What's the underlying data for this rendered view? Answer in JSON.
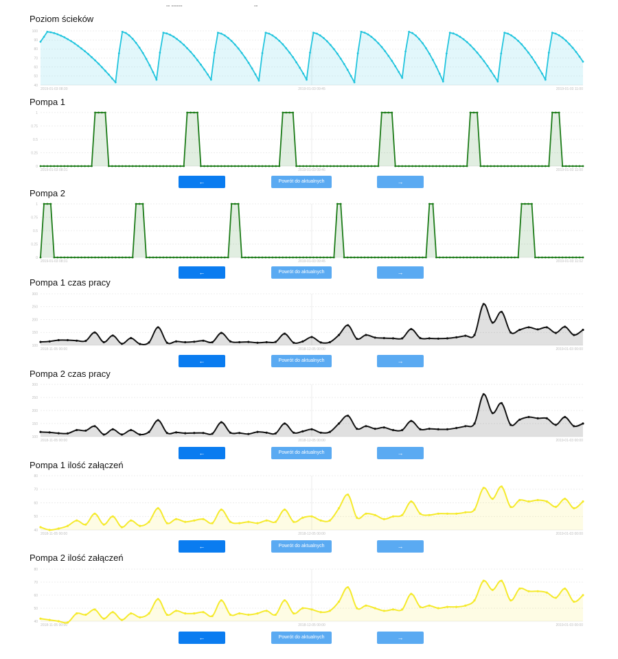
{
  "top_fragment": [
    "-- ------",
    "--"
  ],
  "nav": {
    "prev": "←",
    "current": "Powrót do aktualnych",
    "next": "→"
  },
  "colors": {
    "cyan": "#20c4dd",
    "green": "#1a7a16",
    "black": "#111111",
    "yellow": "#f5ea2c",
    "button_primary": "#0a7cf0",
    "button_secondary": "#5aaaf2"
  },
  "charts": [
    {
      "id": "poziom",
      "title": "Poziom ścieków",
      "type": "area",
      "ylim": [
        40,
        100
      ],
      "yticks": [
        "40",
        "50",
        "60",
        "70",
        "80",
        "90",
        "100"
      ],
      "xlabels": [
        "2019-01-03 08:30",
        "2019-01-03 09:45",
        "2019-01-03 11:00"
      ],
      "x_count": 160,
      "series_kind": "sawtooth",
      "teeth": [
        [
          2,
          99,
          22,
          43
        ],
        [
          24,
          99,
          34,
          46
        ],
        [
          36,
          98,
          50,
          46
        ],
        [
          52,
          98,
          64,
          45
        ],
        [
          66,
          98,
          78,
          46
        ],
        [
          80,
          98,
          92,
          43
        ],
        [
          94,
          99,
          106,
          48
        ],
        [
          108,
          99,
          118,
          44
        ],
        [
          120,
          98,
          134,
          44
        ],
        [
          136,
          98,
          148,
          46
        ],
        [
          150,
          98,
          159,
          66
        ]
      ],
      "color_key": "cyan",
      "has_buttons": false
    },
    {
      "id": "pompa1",
      "title": "Pompa 1",
      "type": "step",
      "ylim": [
        0,
        1
      ],
      "yticks": [
        "0",
        "0.25",
        "0.5",
        "0.75",
        "1"
      ],
      "xlabels": [
        "2019-01-03 08:31",
        "2019-01-03 09:46",
        "2019-01-03 11:00"
      ],
      "x_count": 160,
      "series_kind": "pulses",
      "pulses": [
        [
          16,
          19
        ],
        [
          43,
          46
        ],
        [
          71,
          74
        ],
        [
          100,
          103
        ],
        [
          126,
          128
        ],
        [
          150,
          152
        ]
      ],
      "color_key": "green",
      "has_buttons": true
    },
    {
      "id": "pompa2",
      "title": "Pompa 2",
      "type": "step",
      "ylim": [
        0,
        1
      ],
      "yticks": [
        "0",
        "0.25",
        "0.5",
        "0.75",
        "1"
      ],
      "xlabels": [
        "2019-01-03 08:31",
        "2019-01-03 09:45",
        "2019-01-03 11:02"
      ],
      "x_count": 160,
      "series_kind": "pulses",
      "pulses": [
        [
          1,
          3
        ],
        [
          28,
          30
        ],
        [
          56,
          58
        ],
        [
          87,
          88
        ],
        [
          114,
          115
        ],
        [
          141,
          144
        ]
      ],
      "color_key": "green",
      "has_buttons": true
    },
    {
      "id": "pompa1czas",
      "title": "Pompa 1 czas pracy",
      "type": "line",
      "ylim": [
        100,
        300
      ],
      "yticks": [
        "100",
        "150",
        "200",
        "250",
        "300"
      ],
      "xlabels": [
        "2018-11-05 00:00",
        "2018-12-05 00:00",
        "2019-01-03 00:00"
      ],
      "values": [
        113,
        115,
        120,
        120,
        118,
        117,
        150,
        112,
        138,
        106,
        128,
        105,
        111,
        170,
        110,
        115,
        112,
        114,
        118,
        112,
        148,
        115,
        112,
        113,
        110,
        112,
        113,
        145,
        110,
        115,
        132,
        111,
        112,
        140,
        178,
        125,
        140,
        130,
        128,
        127,
        127,
        163,
        128,
        127,
        126,
        127,
        131,
        137,
        140,
        260,
        188,
        230,
        150,
        160,
        170,
        162,
        170,
        148,
        172,
        140,
        160
      ],
      "color_key": "black",
      "has_buttons": true
    },
    {
      "id": "pompa2czas",
      "title": "Pompa 2 czas pracy",
      "type": "line",
      "ylim": [
        100,
        300
      ],
      "yticks": [
        "100",
        "150",
        "200",
        "250",
        "300"
      ],
      "xlabels": [
        "2018-11-05 00:00",
        "2018-12-05 00:00",
        "2019-01-03 00:00"
      ],
      "values": [
        118,
        116,
        113,
        112,
        125,
        123,
        140,
        108,
        128,
        108,
        125,
        108,
        118,
        163,
        114,
        116,
        113,
        114,
        114,
        111,
        155,
        115,
        114,
        110,
        118,
        115,
        112,
        150,
        115,
        120,
        128,
        115,
        118,
        150,
        180,
        130,
        140,
        130,
        135,
        125,
        125,
        160,
        128,
        130,
        128,
        128,
        133,
        140,
        150,
        262,
        190,
        228,
        145,
        165,
        175,
        170,
        170,
        145,
        175,
        140,
        150
      ],
      "color_key": "black",
      "has_buttons": true
    },
    {
      "id": "pompa1ilosc",
      "title": "Pompa 1 ilość załączeń",
      "type": "line",
      "ylim": [
        40,
        80
      ],
      "yticks": [
        "40",
        "50",
        "60",
        "70",
        "80"
      ],
      "xlabels": [
        "2018-11-05 00:00",
        "2018-12-05 00:00",
        "2019-01-03 00:00"
      ],
      "values": [
        42,
        40,
        41,
        43,
        47,
        44,
        52,
        44,
        50,
        42,
        47,
        43,
        46,
        56,
        45,
        48,
        46,
        47,
        48,
        45,
        55,
        46,
        45,
        46,
        45,
        47,
        46,
        55,
        46,
        49,
        50,
        47,
        47,
        56,
        66,
        49,
        52,
        51,
        48,
        50,
        51,
        61,
        52,
        51,
        52,
        52,
        52,
        53,
        55,
        71,
        63,
        72,
        57,
        62,
        61,
        62,
        61,
        57,
        63,
        56,
        61
      ],
      "color_key": "yellow",
      "has_buttons": true
    },
    {
      "id": "pompa2ilosc",
      "title": "Pompa 2 ilość załączeń",
      "type": "line",
      "ylim": [
        40,
        80
      ],
      "yticks": [
        "40",
        "50",
        "60",
        "70",
        "80"
      ],
      "xlabels": [
        "2018-11-05 00:00",
        "2018-12-05 00:00",
        "2019-01-03 00:00"
      ],
      "values": [
        42,
        41,
        40,
        39,
        46,
        45,
        49,
        42,
        47,
        41,
        46,
        43,
        46,
        57,
        45,
        48,
        46,
        46,
        47,
        44,
        56,
        45,
        46,
        45,
        46,
        48,
        45,
        56,
        46,
        50,
        49,
        47,
        48,
        55,
        66,
        50,
        52,
        50,
        48,
        49,
        49,
        61,
        51,
        52,
        50,
        51,
        51,
        52,
        56,
        71,
        64,
        71,
        56,
        65,
        63,
        63,
        62,
        58,
        65,
        55,
        60
      ],
      "color_key": "yellow",
      "has_buttons": true
    }
  ]
}
